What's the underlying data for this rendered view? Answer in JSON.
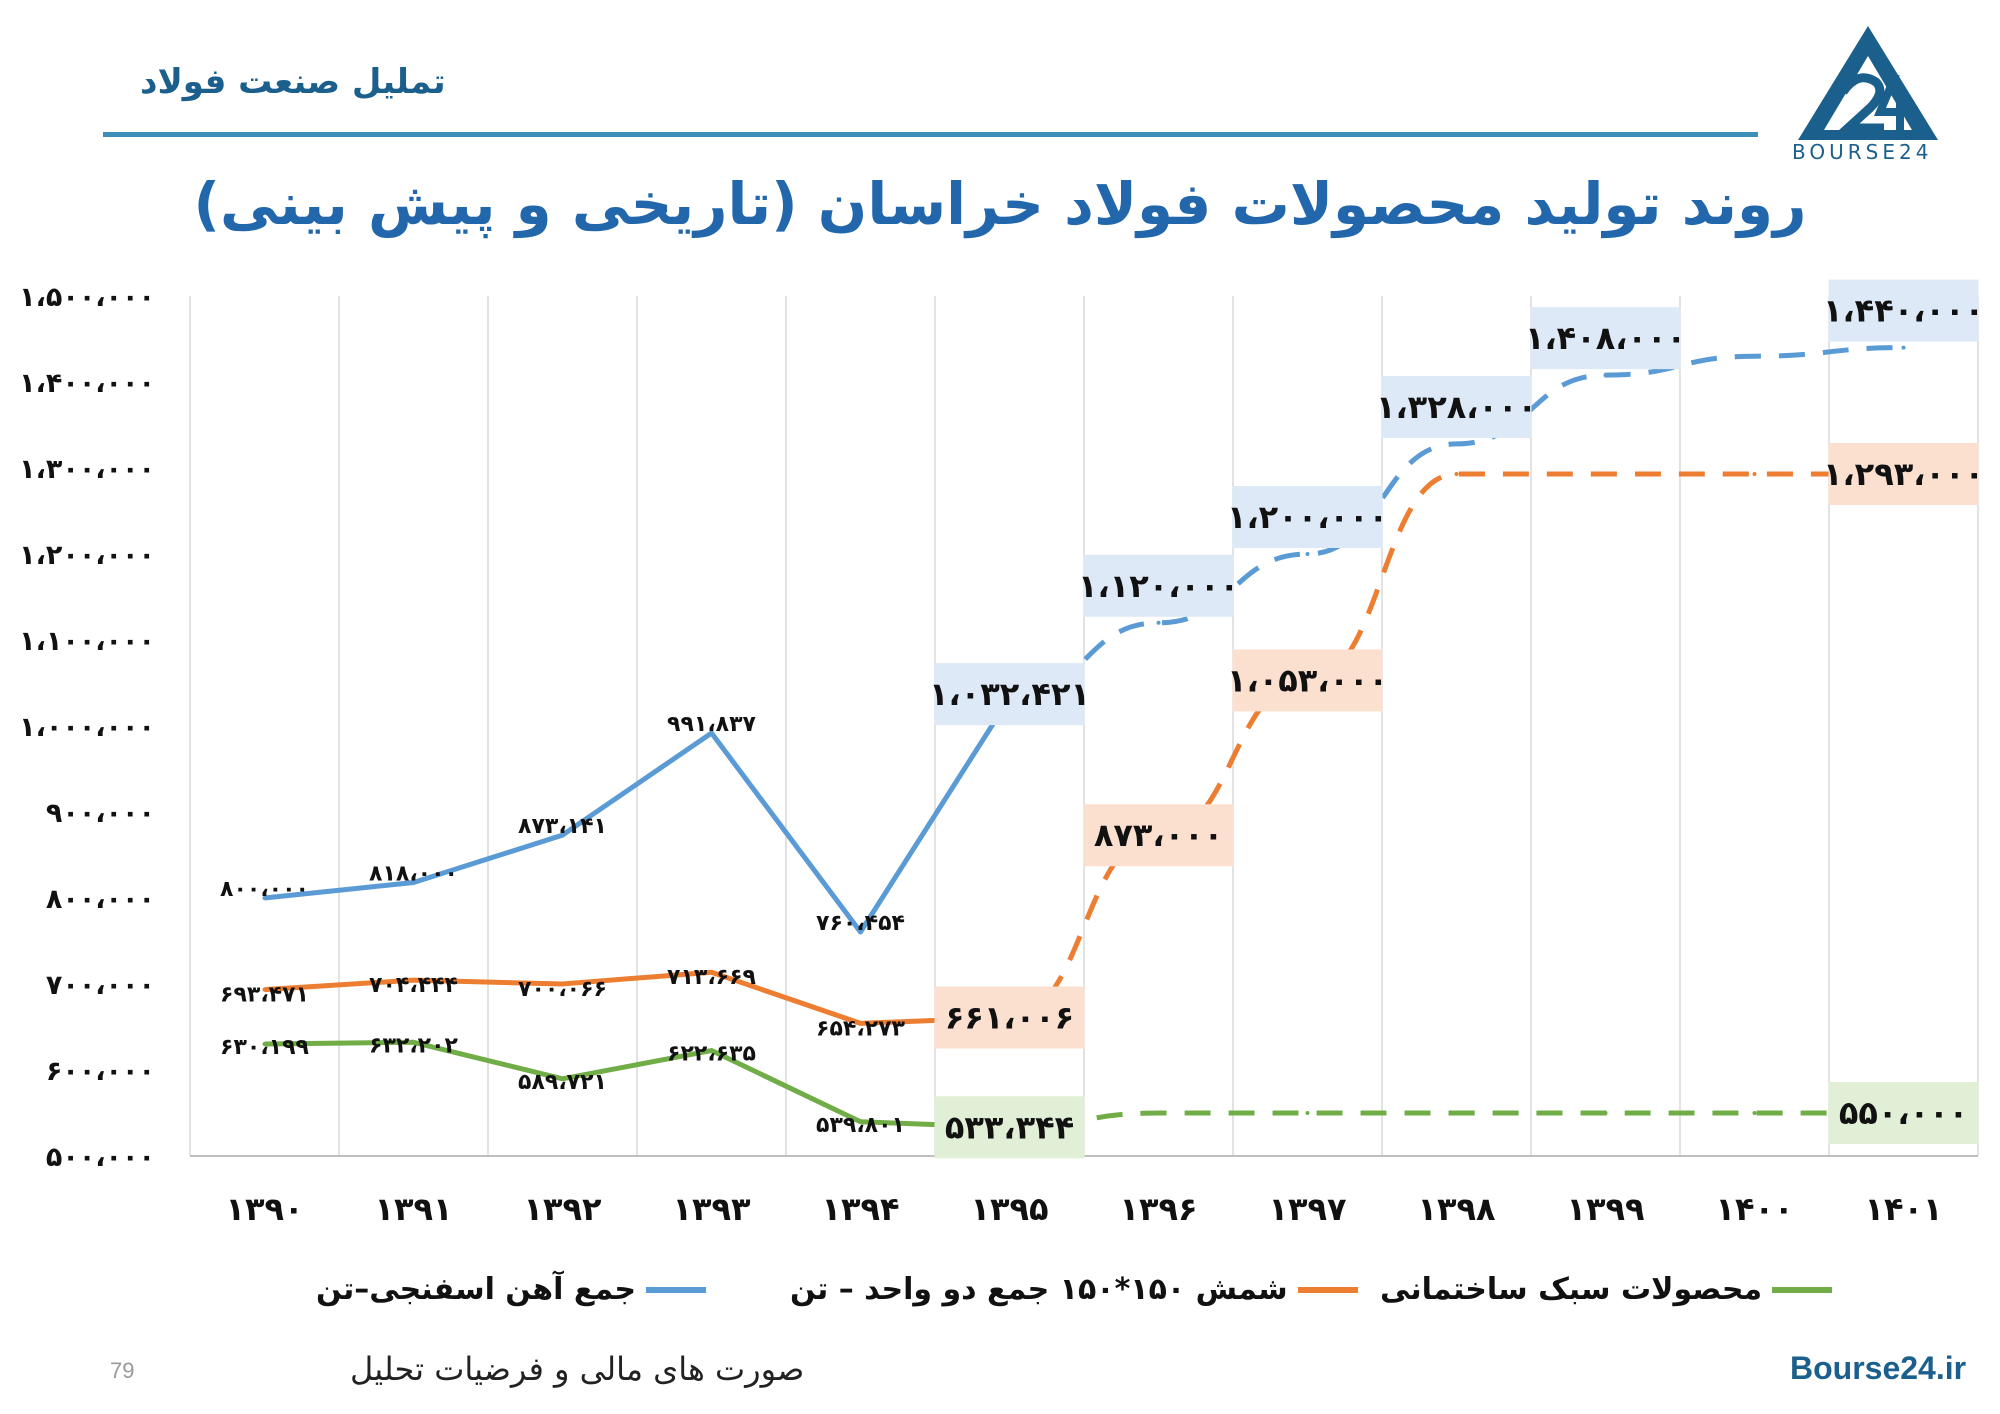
{
  "header": {
    "title": "تملیل صنعت فولاد",
    "logo_text": "BOURSE24"
  },
  "footer": {
    "page_number": "79",
    "source": "صورت های مالی و فرضیات تحلیل",
    "site": "Bourse24.ir"
  },
  "colors": {
    "blue": "#5b9bd5",
    "orange": "#ed7d31",
    "green": "#70ad47",
    "title": "#2267ac",
    "blue_box": "#dde9f6",
    "orange_box": "#fbe0d0",
    "green_box": "#e0efd5"
  },
  "chart_data": {
    "type": "line",
    "title": "روند تولید محصولات فولاد خراسان (تاریخی و پیش بینی)",
    "xlabel": "",
    "ylabel": "",
    "ylim": [
      500000,
      1500000
    ],
    "grid": "vertical",
    "legend_position": "bottom",
    "categories": [
      "۱۳۹۰",
      "۱۳۹۱",
      "۱۳۹۲",
      "۱۳۹۳",
      "۱۳۹۴",
      "۱۳۹۵",
      "۱۳۹۶",
      "۱۳۹۷",
      "۱۳۹۸",
      "۱۳۹۹",
      "۱۴۰۰",
      "۱۴۰۱"
    ],
    "y_tick_values": [
      500000,
      600000,
      700000,
      800000,
      900000,
      1000000,
      1100000,
      1200000,
      1300000,
      1400000,
      1500000
    ],
    "y_tick_labels": [
      "۵۰۰،۰۰۰",
      "۶۰۰،۰۰۰",
      "۷۰۰،۰۰۰",
      "۸۰۰،۰۰۰",
      "۹۰۰،۰۰۰",
      "۱،۰۰۰،۰۰۰",
      "۱،۱۰۰،۰۰۰",
      "۱،۲۰۰،۰۰۰",
      "۱،۳۰۰،۰۰۰",
      "۱،۴۰۰،۰۰۰",
      "۱،۵۰۰،۰۰۰"
    ],
    "historical_last_index": 5,
    "series": [
      {
        "name": "جمع آهن اسفنجی–تن",
        "color": "#5b9bd5",
        "values": [
          800000,
          818000,
          873141,
          991837,
          760454,
          1032421,
          1120000,
          1200000,
          1328000,
          1408000,
          1430000,
          1440000
        ],
        "labels": [
          "۸۰۰،۰۰۰",
          "۸۱۸،۰۰۰",
          "۸۷۳،۱۴۱",
          "۹۹۱،۸۳۷",
          "۷۶۰،۴۵۴",
          "۱،۰۳۲،۴۲۱",
          "۱،۱۲۰،۰۰۰",
          "۱،۲۰۰،۰۰۰",
          "۱،۳۲۸،۰۰۰",
          "۱،۴۰۸،۰۰۰",
          "",
          "۱،۴۴۰،۰۰۰"
        ]
      },
      {
        "name": "شمش ۱۵۰*۱۵۰ جمع دو واحد – تن",
        "color": "#ed7d31",
        "values": [
          693471,
          704444,
          700066,
          713669,
          654273,
          661006,
          873000,
          1053000,
          1293000,
          1293000,
          1293000,
          1293000
        ],
        "labels": [
          "۶۹۳،۴۷۱",
          "۷۰۴،۴۴۴",
          "۷۰۰،۰۶۶",
          "۷۱۳،۶۶۹",
          "۶۵۴،۲۷۳",
          "۶۶۱،۰۰۶",
          "۸۷۳،۰۰۰",
          "۱،۰۵۳،۰۰۰",
          "",
          "",
          "",
          "۱،۲۹۳،۰۰۰"
        ]
      },
      {
        "name": "محصولات سبک ساختمانی",
        "color": "#70ad47",
        "values": [
          630199,
          632202,
          589721,
          622635,
          539801,
          533344,
          550000,
          550000,
          550000,
          550000,
          550000,
          550000
        ],
        "labels": [
          "۶۳۰،۱۹۹",
          "۶۳۲،۲۰۲",
          "۵۸۹،۷۲۱",
          "۶۲۲،۶۳۵",
          "۵۳۹،۸۰۱",
          "۵۳۳،۳۴۴",
          "",
          "",
          "",
          "",
          "",
          "۵۵۰،۰۰۰"
        ]
      }
    ]
  }
}
